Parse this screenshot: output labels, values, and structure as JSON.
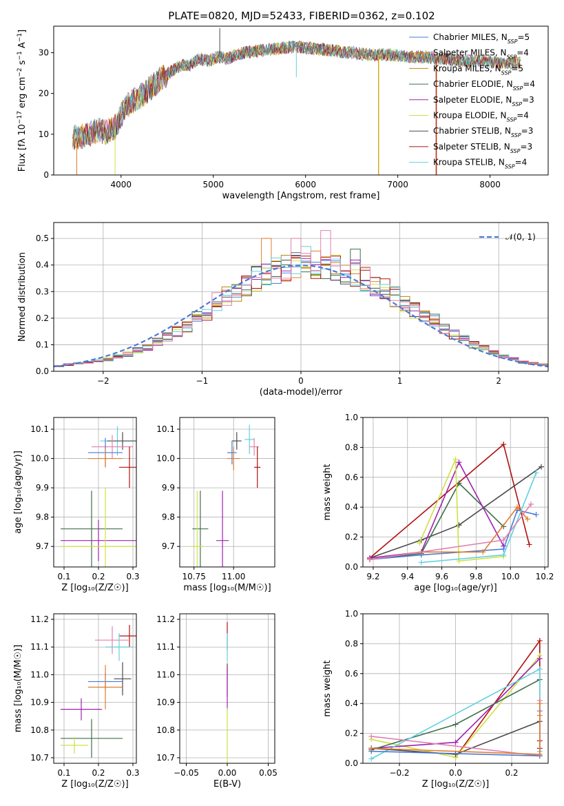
{
  "figure_title": "PLATE=0820, MJD=52433, FIBERID=0362, z=0.102",
  "colors": {
    "Chabrier MILES": "#4a78d6",
    "Salpeter MILES": "#e07b2b",
    "Kroupa MILES": "#b8860b",
    "Chabrier ELODIE": "#3f6e4a",
    "Salpeter ELODIE": "#a020b0",
    "Kroupa ELODIE": "#d0e040",
    "Chabrier STELIB": "#4a4a4a",
    "Salpeter STELIB": "#b01010",
    "Kroupa STELIB": "#60d0e0",
    "pink": "#e080b0",
    "grid": "#b0b0b0",
    "gaussian": "#4a78d6"
  },
  "chart_data": [
    {
      "id": "spectrum",
      "type": "line",
      "xlabel": "wavelength [Angstrom, rest frame]",
      "ylabel": "Flux [f_λ 10^-17 erg cm^-2 s^-1 A^-1]",
      "xlim": [
        3270,
        8630
      ],
      "ylim": [
        0,
        36.5
      ],
      "xticks": [
        4000,
        5000,
        6000,
        7000,
        8000
      ],
      "yticks": [
        0,
        10,
        20,
        30
      ],
      "grid": false,
      "legend_position": "right",
      "series": [
        {
          "name": "Chabrier MILES, N_SSP=5",
          "label_main": "Chabrier MILES, N",
          "label_sub": "SSP",
          "label_tail": "=5"
        },
        {
          "name": "Salpeter MILES, N_SSP=4",
          "label_main": "Salpeter MILES, N",
          "label_sub": "SSP",
          "label_tail": "=4"
        },
        {
          "name": "Kroupa MILES, N_SSP=5",
          "label_main": "Kroupa MILES, N",
          "label_sub": "SSP",
          "label_tail": "=5"
        },
        {
          "name": "Chabrier ELODIE, N_SSP=4",
          "label_main": "Chabrier ELODIE, N",
          "label_sub": "SSP",
          "label_tail": "=4"
        },
        {
          "name": "Salpeter ELODIE, N_SSP=3",
          "label_main": "Salpeter ELODIE, N",
          "label_sub": "SSP",
          "label_tail": "=3"
        },
        {
          "name": "Kroupa ELODIE, N_SSP=4",
          "label_main": "Kroupa ELODIE, N",
          "label_sub": "SSP",
          "label_tail": "=4"
        },
        {
          "name": "Chabrier STELIB, N_SSP=3",
          "label_main": "Chabrier STELIB, N",
          "label_sub": "SSP",
          "label_tail": "=3"
        },
        {
          "name": "Salpeter STELIB, N_SSP=3",
          "label_main": "Salpeter STELIB, N",
          "label_sub": "SSP",
          "label_tail": "=3"
        },
        {
          "name": "Kroupa STELIB, N_SSP=4",
          "label_main": "Kroupa STELIB, N",
          "label_sub": "SSP",
          "label_tail": "=4"
        }
      ],
      "spectrum_envelope": {
        "x": [
          3470,
          3550,
          3650,
          3750,
          3850,
          3950,
          4050,
          4150,
          4250,
          4350,
          4450,
          4550,
          4650,
          4750,
          4850,
          4950,
          5050,
          5150,
          5250,
          5350,
          5500,
          5700,
          5900,
          6100,
          6300,
          6500,
          6700,
          6900,
          7100,
          7300,
          7500,
          7700,
          7900,
          8100,
          8300
        ],
        "y": [
          9,
          9.5,
          10,
          11,
          10.5,
          12,
          17,
          18.5,
          20,
          22,
          24,
          25.5,
          27,
          27,
          28.5,
          28,
          29,
          28.5,
          29.5,
          30,
          30.5,
          31,
          31.5,
          31,
          30.5,
          30,
          29.5,
          29.5,
          29,
          29,
          28.5,
          28,
          28,
          27.5,
          27.5
        ]
      },
      "absorption_drops": [
        {
          "x": 3520,
          "color": "Salpeter MILES",
          "to": 0
        },
        {
          "x": 3935,
          "color": "Kroupa ELODIE",
          "to": 0
        },
        {
          "x": 5070,
          "color": "Chabrier STELIB",
          "to": 36
        },
        {
          "x": 5900,
          "color": "Kroupa STELIB",
          "to": 24
        },
        {
          "x": 6790,
          "color": "Salpeter MILES",
          "to": 0
        },
        {
          "x": 6795,
          "color": "Kroupa ELODIE",
          "to": 0
        },
        {
          "x": 7420,
          "color": "Salpeter MILES",
          "to": 0
        },
        {
          "x": 7415,
          "color": "Salpeter STELIB",
          "to": 0
        }
      ]
    },
    {
      "id": "residuals",
      "type": "line",
      "xlabel": "(data-model)/error",
      "ylabel": "Normed distribution",
      "xlim": [
        -2.5,
        2.5
      ],
      "ylim": [
        0,
        0.56
      ],
      "xticks": [
        -2,
        -1,
        0,
        1,
        2
      ],
      "yticks": [
        0.0,
        0.1,
        0.2,
        0.3,
        0.4,
        0.5
      ],
      "grid": true,
      "legend_position": "top-right",
      "legend": "𝒩(0, 1)",
      "bin_width": 0.1,
      "base_hist_note": "step histograms approximating N(0,1)",
      "histogram_heights": [
        0.02,
        0.025,
        0.03,
        0.035,
        0.04,
        0.045,
        0.055,
        0.065,
        0.08,
        0.09,
        0.11,
        0.13,
        0.15,
        0.17,
        0.2,
        0.22,
        0.26,
        0.28,
        0.3,
        0.33,
        0.35,
        0.36,
        0.38,
        0.39,
        0.4,
        0.41,
        0.4,
        0.4,
        0.39,
        0.38,
        0.37,
        0.35,
        0.33,
        0.31,
        0.28,
        0.26,
        0.23,
        0.21,
        0.19,
        0.16,
        0.14,
        0.12,
        0.1,
        0.085,
        0.07,
        0.055,
        0.045,
        0.035,
        0.03,
        0.025
      ],
      "spikes": [
        {
          "x": -0.35,
          "value": 0.5,
          "color": "Salpeter MILES"
        },
        {
          "x": -0.05,
          "value": 0.5,
          "color": "pink"
        },
        {
          "x": 0.25,
          "value": 0.53,
          "color": "pink"
        },
        {
          "x": 0.55,
          "value": 0.46,
          "color": "Chabrier ELODIE"
        },
        {
          "x": 0.05,
          "value": 0.47,
          "color": "Kroupa STELIB"
        }
      ]
    },
    {
      "id": "age-vs-Z",
      "type": "scatter",
      "xlabel": "Z [log10(Z/Z☉)]",
      "ylabel": "age [log10(age/yr)]",
      "xlim": [
        0.07,
        0.31
      ],
      "ylim": [
        9.63,
        10.14
      ],
      "xticks": [
        0.1,
        0.2,
        0.3
      ],
      "yticks": [
        9.7,
        9.8,
        9.9,
        10.0,
        10.1
      ],
      "grid": true,
      "points": [
        {
          "x": 0.255,
          "y": 10.06,
          "xerr": 0.05,
          "yerr": 0.05,
          "c": "Kroupa STELIB"
        },
        {
          "x": 0.27,
          "y": 10.06,
          "xerr": 0.045,
          "yerr": 0.03,
          "c": "Chabrier STELIB"
        },
        {
          "x": 0.24,
          "y": 10.04,
          "xerr": 0.06,
          "yerr": 0.04,
          "c": "pink"
        },
        {
          "x": 0.22,
          "y": 10.02,
          "xerr": 0.05,
          "yerr": 0.05,
          "c": "Chabrier MILES"
        },
        {
          "x": 0.22,
          "y": 10.0,
          "xerr": 0.05,
          "yerr": 0.03,
          "c": "Salpeter MILES"
        },
        {
          "x": 0.29,
          "y": 9.97,
          "xerr": 0.03,
          "yerr": 0.07,
          "c": "Salpeter STELIB"
        },
        {
          "x": 0.18,
          "y": 9.76,
          "xerr": 0.09,
          "yerr": 0.13,
          "c": "Chabrier ELODIE"
        },
        {
          "x": 0.2,
          "y": 9.72,
          "xerr": 0.11,
          "yerr": 0.07,
          "c": "Salpeter ELODIE"
        },
        {
          "x": 0.22,
          "y": 9.7,
          "xerr": 0.13,
          "yerr": 0.2,
          "c": "Kroupa ELODIE"
        }
      ]
    },
    {
      "id": "age-vs-mass",
      "type": "scatter",
      "xlabel": "mass [log10(M/M☉)]",
      "ylabel": "",
      "xlim": [
        10.66,
        11.26
      ],
      "ylim": [
        9.63,
        10.14
      ],
      "xticks": [
        10.75,
        11.0
      ],
      "yticks": [
        9.7,
        9.8,
        9.9,
        10.0,
        10.1
      ],
      "grid": true,
      "points": [
        {
          "x": 11.1,
          "y": 10.065,
          "xerr": 0.03,
          "yerr": 0.05,
          "c": "Kroupa STELIB"
        },
        {
          "x": 11.02,
          "y": 10.06,
          "xerr": 0.03,
          "yerr": 0.03,
          "c": "Chabrier STELIB"
        },
        {
          "x": 11.13,
          "y": 10.04,
          "xerr": 0.03,
          "yerr": 0.03,
          "c": "pink"
        },
        {
          "x": 10.99,
          "y": 10.02,
          "xerr": 0.03,
          "yerr": 0.04,
          "c": "Chabrier MILES"
        },
        {
          "x": 11.0,
          "y": 10.0,
          "xerr": 0.04,
          "yerr": 0.04,
          "c": "Salpeter MILES"
        },
        {
          "x": 11.15,
          "y": 9.97,
          "xerr": 0.02,
          "yerr": 0.07,
          "c": "Salpeter STELIB"
        },
        {
          "x": 10.79,
          "y": 9.76,
          "xerr": 0.05,
          "yerr": 0.13,
          "c": "Chabrier ELODIE"
        },
        {
          "x": 10.93,
          "y": 9.72,
          "xerr": 0.04,
          "yerr": 0.17,
          "c": "Salpeter ELODIE"
        },
        {
          "x": 10.77,
          "y": 9.7,
          "xerr": 0.04,
          "yerr": 0.19,
          "c": "Kroupa ELODIE"
        }
      ]
    },
    {
      "id": "mass-weight-vs-age",
      "type": "line",
      "xlabel": "age [log10(age/yr)]",
      "ylabel": "mass weight",
      "xlim": [
        9.14,
        10.22
      ],
      "ylim": [
        0,
        1.0
      ],
      "xticks": [
        9.2,
        9.4,
        9.6,
        9.8,
        10.0,
        10.2
      ],
      "yticks": [
        0.0,
        0.2,
        0.4,
        0.6,
        0.8,
        1.0
      ],
      "grid": true,
      "series": [
        {
          "c": "Salpeter STELIB",
          "x": [
            9.18,
            9.96,
            10.11
          ],
          "y": [
            0.06,
            0.82,
            0.15
          ]
        },
        {
          "c": "Chabrier STELIB",
          "x": [
            9.18,
            9.48,
            9.7,
            10.18
          ],
          "y": [
            0.06,
            0.18,
            0.28,
            0.67
          ]
        },
        {
          "c": "Chabrier ELODIE",
          "x": [
            9.18,
            9.48,
            9.7,
            9.96
          ],
          "y": [
            0.05,
            0.09,
            0.56,
            0.27
          ]
        },
        {
          "c": "Salpeter ELODIE",
          "x": [
            9.18,
            9.48,
            9.7,
            9.96
          ],
          "y": [
            0.06,
            0.1,
            0.7,
            0.14
          ]
        },
        {
          "c": "Kroupa ELODIE",
          "x": [
            9.47,
            9.68,
            9.7,
            9.96
          ],
          "y": [
            0.16,
            0.72,
            0.04,
            0.07
          ]
        },
        {
          "c": "Chabrier MILES",
          "x": [
            9.18,
            9.48,
            9.96,
            10.04,
            10.15
          ],
          "y": [
            0.05,
            0.08,
            0.12,
            0.38,
            0.35
          ]
        },
        {
          "c": "Salpeter MILES",
          "x": [
            9.18,
            9.48,
            9.84,
            10.04,
            10.1
          ],
          "y": [
            0.05,
            0.1,
            0.1,
            0.4,
            0.32
          ]
        },
        {
          "c": "Kroupa STELIB",
          "x": [
            9.48,
            9.96,
            10.15
          ],
          "y": [
            0.03,
            0.08,
            0.63
          ]
        },
        {
          "c": "pink",
          "x": [
            9.18,
            9.96,
            10.12
          ],
          "y": [
            0.05,
            0.18,
            0.42
          ]
        }
      ]
    },
    {
      "id": "mass-vs-Z",
      "type": "scatter",
      "xlabel": "Z [log10(Z/Z☉)]",
      "ylabel": "mass [log10(M/M☉)]",
      "xlim": [
        0.07,
        0.31
      ],
      "ylim": [
        10.68,
        11.22
      ],
      "xticks": [
        0.1,
        0.2,
        0.3
      ],
      "yticks": [
        10.7,
        10.8,
        10.9,
        11.0,
        11.1,
        11.2
      ],
      "grid": true,
      "points": [
        {
          "x": 0.29,
          "y": 11.14,
          "xerr": 0.03,
          "yerr": 0.04,
          "c": "Salpeter STELIB"
        },
        {
          "x": 0.24,
          "y": 11.125,
          "xerr": 0.05,
          "yerr": 0.05,
          "c": "pink"
        },
        {
          "x": 0.26,
          "y": 11.1,
          "xerr": 0.04,
          "yerr": 0.05,
          "c": "Kroupa STELIB"
        },
        {
          "x": 0.27,
          "y": 10.985,
          "xerr": 0.025,
          "yerr": 0.06,
          "c": "Chabrier STELIB"
        },
        {
          "x": 0.22,
          "y": 10.975,
          "xerr": 0.05,
          "yerr": 0.03,
          "c": "Chabrier MILES"
        },
        {
          "x": 0.22,
          "y": 10.955,
          "xerr": 0.05,
          "yerr": 0.08,
          "c": "Salpeter MILES"
        },
        {
          "x": 0.15,
          "y": 10.875,
          "xerr": 0.06,
          "yerr": 0.04,
          "c": "Salpeter ELODIE"
        },
        {
          "x": 0.18,
          "y": 10.77,
          "xerr": 0.09,
          "yerr": 0.07,
          "c": "Chabrier ELODIE"
        },
        {
          "x": 0.13,
          "y": 10.745,
          "xerr": 0.04,
          "yerr": 0.03,
          "c": "Kroupa ELODIE"
        }
      ]
    },
    {
      "id": "mass-vs-EBV",
      "type": "scatter",
      "xlabel": "E(B-V)",
      "ylabel": "",
      "xlim": [
        -0.058,
        0.058
      ],
      "ylim": [
        10.68,
        11.22
      ],
      "xticks": [
        -0.05,
        0.0,
        0.05
      ],
      "xtick_labels": [
        "−0.05",
        "0.00",
        "0.05"
      ],
      "yticks": [
        10.7,
        10.8,
        10.9,
        11.0,
        11.1,
        11.2
      ],
      "grid": true,
      "points": [
        {
          "x": 0.0,
          "y": 11.14,
          "yerr": 0.05,
          "c": "Salpeter STELIB"
        },
        {
          "x": 0.0,
          "y": 11.1,
          "yerr": 0.05,
          "c": "Kroupa STELIB"
        },
        {
          "x": 0.0,
          "y": 10.98,
          "yerr": 0.06,
          "c": "Chabrier STELIB"
        },
        {
          "x": 0.0,
          "y": 10.95,
          "yerr": 0.08,
          "c": "Salpeter ELODIE"
        },
        {
          "x": 0.0,
          "y": 10.78,
          "yerr": 0.1,
          "c": "Kroupa ELODIE"
        }
      ]
    },
    {
      "id": "mass-weight-vs-Z",
      "type": "line",
      "xlabel": "Z [log10(Z/Z☉)]",
      "ylabel": "mass weight",
      "xlim": [
        -0.33,
        0.33
      ],
      "ylim": [
        0,
        1.0
      ],
      "xticks": [
        -0.2,
        0.0,
        0.2
      ],
      "xtick_labels": [
        "−0.2",
        "0.0",
        "0.2"
      ],
      "yticks": [
        0.0,
        0.2,
        0.4,
        0.6,
        0.8,
        1.0
      ],
      "grid": true,
      "series": [
        {
          "c": "Salpeter STELIB",
          "x": [
            0.0,
            0.3,
            0.3,
            0.3,
            0.3
          ],
          "y": [
            0.04,
            0.82,
            0.15,
            0.05,
            0.1
          ]
        },
        {
          "c": "Kroupa ELODIE",
          "x": [
            -0.3,
            0.0,
            0.3
          ],
          "y": [
            0.16,
            0.04,
            0.72
          ]
        },
        {
          "c": "Salpeter ELODIE",
          "x": [
            -0.3,
            0.0,
            0.3
          ],
          "y": [
            0.1,
            0.14,
            0.7
          ]
        },
        {
          "c": "Chabrier ELODIE",
          "x": [
            -0.3,
            0.0,
            0.3
          ],
          "y": [
            0.09,
            0.26,
            0.56
          ]
        },
        {
          "c": "Kroupa STELIB",
          "x": [
            -0.3,
            0.3,
            0.3
          ],
          "y": [
            0.03,
            0.63,
            0.08
          ]
        },
        {
          "c": "Chabrier STELIB",
          "x": [
            -0.3,
            0.0,
            0.3
          ],
          "y": [
            0.1,
            0.06,
            0.28
          ]
        },
        {
          "c": "pink",
          "x": [
            -0.3,
            0.3,
            0.3
          ],
          "y": [
            0.18,
            0.05,
            0.42
          ]
        },
        {
          "c": "Chabrier MILES",
          "x": [
            -0.3,
            0.3,
            0.3
          ],
          "y": [
            0.08,
            0.05,
            0.35
          ]
        },
        {
          "c": "Salpeter MILES",
          "x": [
            -0.3,
            0.3,
            0.3,
            0.3
          ],
          "y": [
            0.1,
            0.06,
            0.4,
            0.32
          ]
        }
      ]
    }
  ]
}
